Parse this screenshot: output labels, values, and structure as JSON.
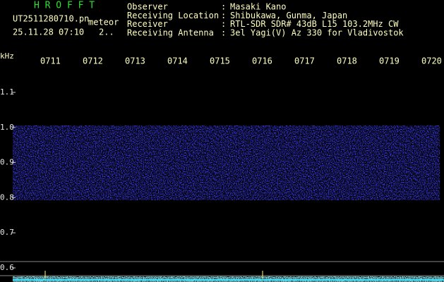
{
  "header": {
    "app": "H R O F F T",
    "file": "UT2511280710.pn",
    "mode": "meteor",
    "datetime": "25.11.28 07:10",
    "extra": "2..",
    "info": [
      {
        "label": "Observer",
        "value": "Masaki Kano"
      },
      {
        "label": "Receiving Location",
        "value": "Shibukawa, Gunma, Japan"
      },
      {
        "label": "Receiver",
        "value": "RTL-SDR SDR# 43dB L15 103.2MHz CW"
      },
      {
        "label": "Receiving Antenna",
        "value": "3el Yagi(V) Az 330 for Vladivostok"
      }
    ],
    "separator": ":"
  },
  "time_labels": [
    "0711",
    "0712",
    "0713",
    "0714",
    "0715",
    "0716",
    "0717",
    "0718",
    "0719",
    "0720"
  ],
  "freq_unit": "kHz",
  "freq_labels": [
    "1.1",
    "1.0",
    "0.9",
    "0.8",
    "0.7",
    "0.6"
  ]
}
